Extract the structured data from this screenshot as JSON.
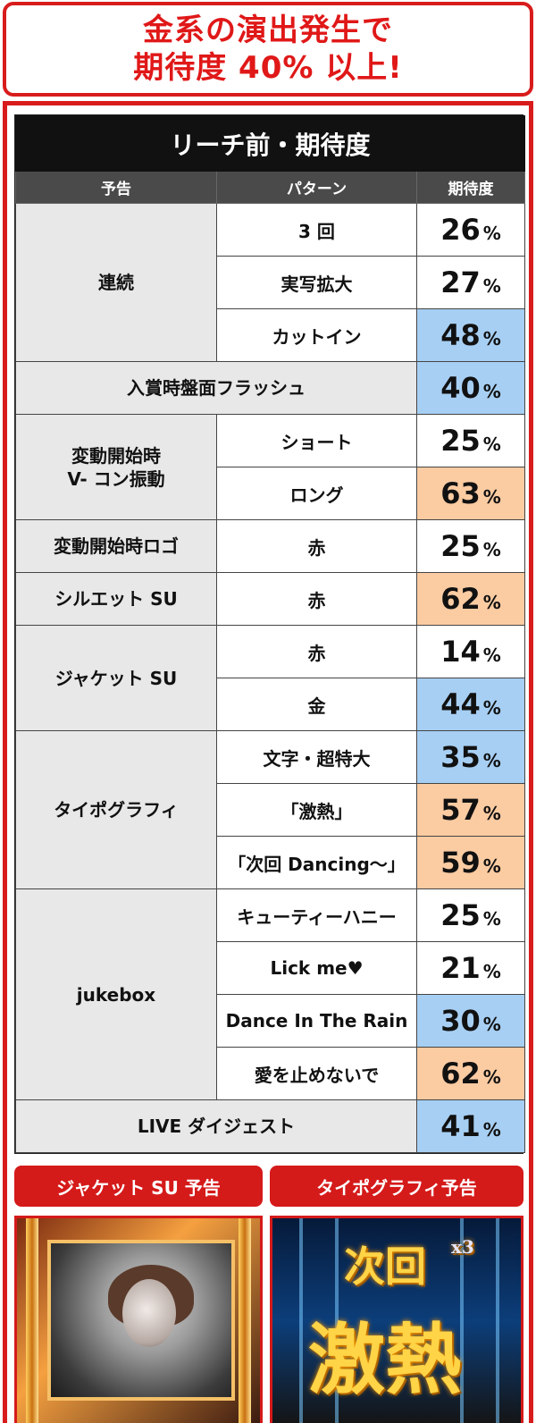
{
  "headline": {
    "line1": "金系の演出発生で",
    "line2": "期待度 40% 以上!"
  },
  "table": {
    "title": "リーチ前・期待度",
    "headers": {
      "notice": "予告",
      "pattern": "パターン",
      "expectation": "期待度"
    },
    "percent_sign": "%",
    "groups": [
      {
        "category": "連続",
        "rows": [
          {
            "pattern": "3 回",
            "value": "26",
            "highlight": "none"
          },
          {
            "pattern": "実写拡大",
            "value": "27",
            "highlight": "none"
          },
          {
            "pattern": "カットイン",
            "value": "48",
            "highlight": "blue"
          }
        ]
      },
      {
        "category": "入賞時盤面フラッシュ",
        "rows": [
          {
            "pattern": "",
            "value": "40",
            "highlight": "blue"
          }
        ]
      },
      {
        "category": "変動開始時\nV- コン振動",
        "rows": [
          {
            "pattern": "ショート",
            "value": "25",
            "highlight": "none"
          },
          {
            "pattern": "ロング",
            "value": "63",
            "highlight": "orange"
          }
        ]
      },
      {
        "category": "変動開始時ロゴ",
        "rows": [
          {
            "pattern": "赤",
            "value": "25",
            "highlight": "none"
          }
        ]
      },
      {
        "category": "シルエット SU",
        "rows": [
          {
            "pattern": "赤",
            "value": "62",
            "highlight": "orange"
          }
        ]
      },
      {
        "category": "ジャケット SU",
        "rows": [
          {
            "pattern": "赤",
            "value": "14",
            "highlight": "none"
          },
          {
            "pattern": "金",
            "value": "44",
            "highlight": "blue"
          }
        ]
      },
      {
        "category": "タイポグラフィ",
        "rows": [
          {
            "pattern": "文字・超特大",
            "value": "35",
            "highlight": "blue"
          },
          {
            "pattern": "「激熱」",
            "value": "57",
            "highlight": "orange"
          },
          {
            "pattern": "「次回 Dancing〜」",
            "value": "59",
            "highlight": "orange"
          }
        ]
      },
      {
        "category": "jukebox",
        "rows": [
          {
            "pattern": "キューティーハニー",
            "value": "25",
            "highlight": "none"
          },
          {
            "pattern": "Lick me♥",
            "value": "21",
            "highlight": "none"
          },
          {
            "pattern": "Dance In The Rain",
            "value": "30",
            "highlight": "blue"
          },
          {
            "pattern": "愛を止めないで",
            "value": "62",
            "highlight": "orange"
          }
        ]
      },
      {
        "category": "LIVE ダイジェスト",
        "rows": [
          {
            "pattern": "",
            "value": "41",
            "highlight": "blue"
          }
        ]
      }
    ]
  },
  "bottom": {
    "left_label": "ジャケット SU 予告",
    "right_label": "タイポグラフィ予告",
    "right_image_text_top": "次回",
    "right_image_text_bottom": "激熱",
    "right_image_badge": "x3"
  },
  "colors": {
    "accent_red": "#d81c1c",
    "blue_highlight": "#a7cff3",
    "orange_highlight": "#fbcba2"
  }
}
